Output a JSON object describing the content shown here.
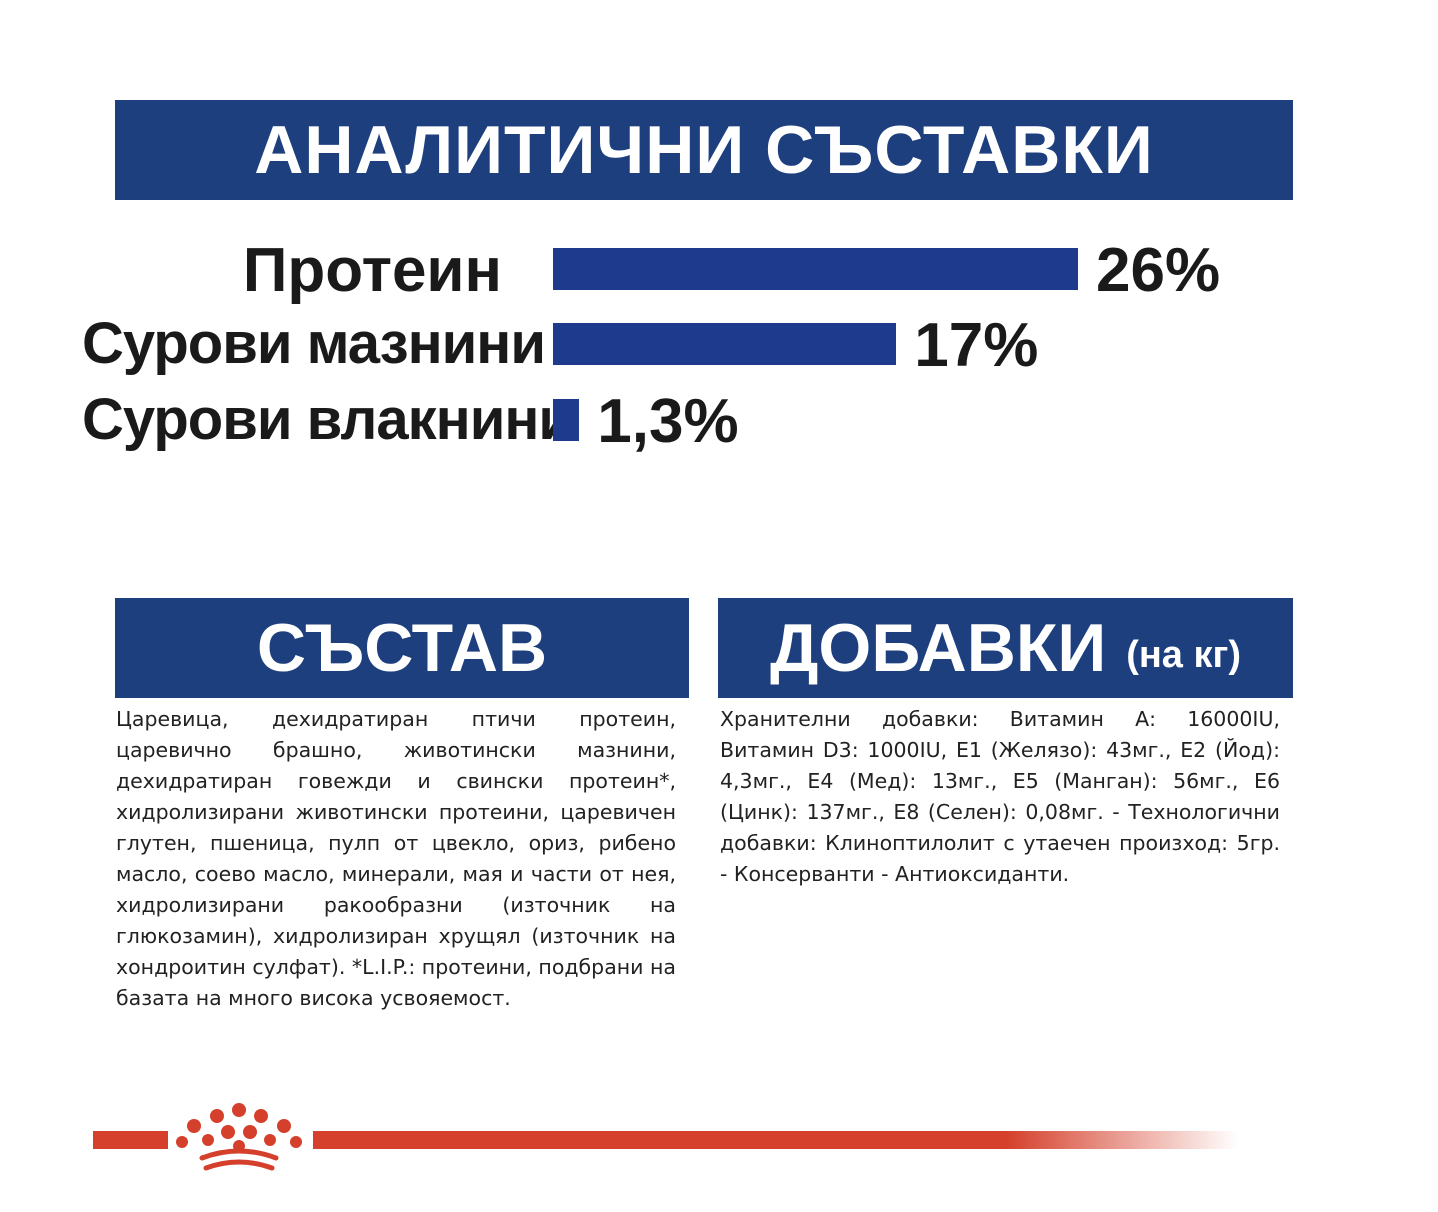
{
  "analytic": {
    "title": "АНАЛИТИЧНИ СЪСТАВКИ",
    "rows": [
      {
        "label": "Протеин",
        "value": 26,
        "value_text": "26%"
      },
      {
        "label": "Сурови мазнини",
        "value": 17,
        "value_text": "17%"
      },
      {
        "label": "Сурови влакнини",
        "value": 1.3,
        "value_text": "1,3%"
      }
    ]
  },
  "composition": {
    "title": "СЪСТАВ",
    "text": "Царевица, дехидратиран птичи протеин, царевично брашно, животински мазнини, дехидратиран говежди и свински протеин*, хидролизирани животински протеини, царевичен глутен, пшеница, пулп от цвекло, ориз, рибено масло, соево масло, минерали, мая и части от нея, хидролизирани ракообразни (източник на глюкозамин), хидролизиран хрущял (източник на хондроитин сулфат). *L.I.P.: протеини, подбрани на базата на много висока усвояемост."
  },
  "additives": {
    "title": "ДОБАВКИ",
    "subtitle": "(на кг)",
    "text": "Хранителни добавки: Витамин А: 16000IU, Витамин D3: 1000IU, E1 (Желязо): 43мг., E2 (Йод): 4,3мг., E4 (Мед): 13мг., E5 (Манган): 56мг., E6 (Цинк): 137мг., E8 (Селен): 0,08мг. - Технологични добавки: Клиноптилолит с утаечен произход: 5гр. - Консерванти - Антиоксиданти."
  },
  "colors": {
    "brand_blue": "#1d3f7e",
    "bar_blue": "#1d3a8c",
    "brand_red": "#d5402c"
  },
  "footer": {
    "logo_icon": "royal-crown-icon"
  }
}
